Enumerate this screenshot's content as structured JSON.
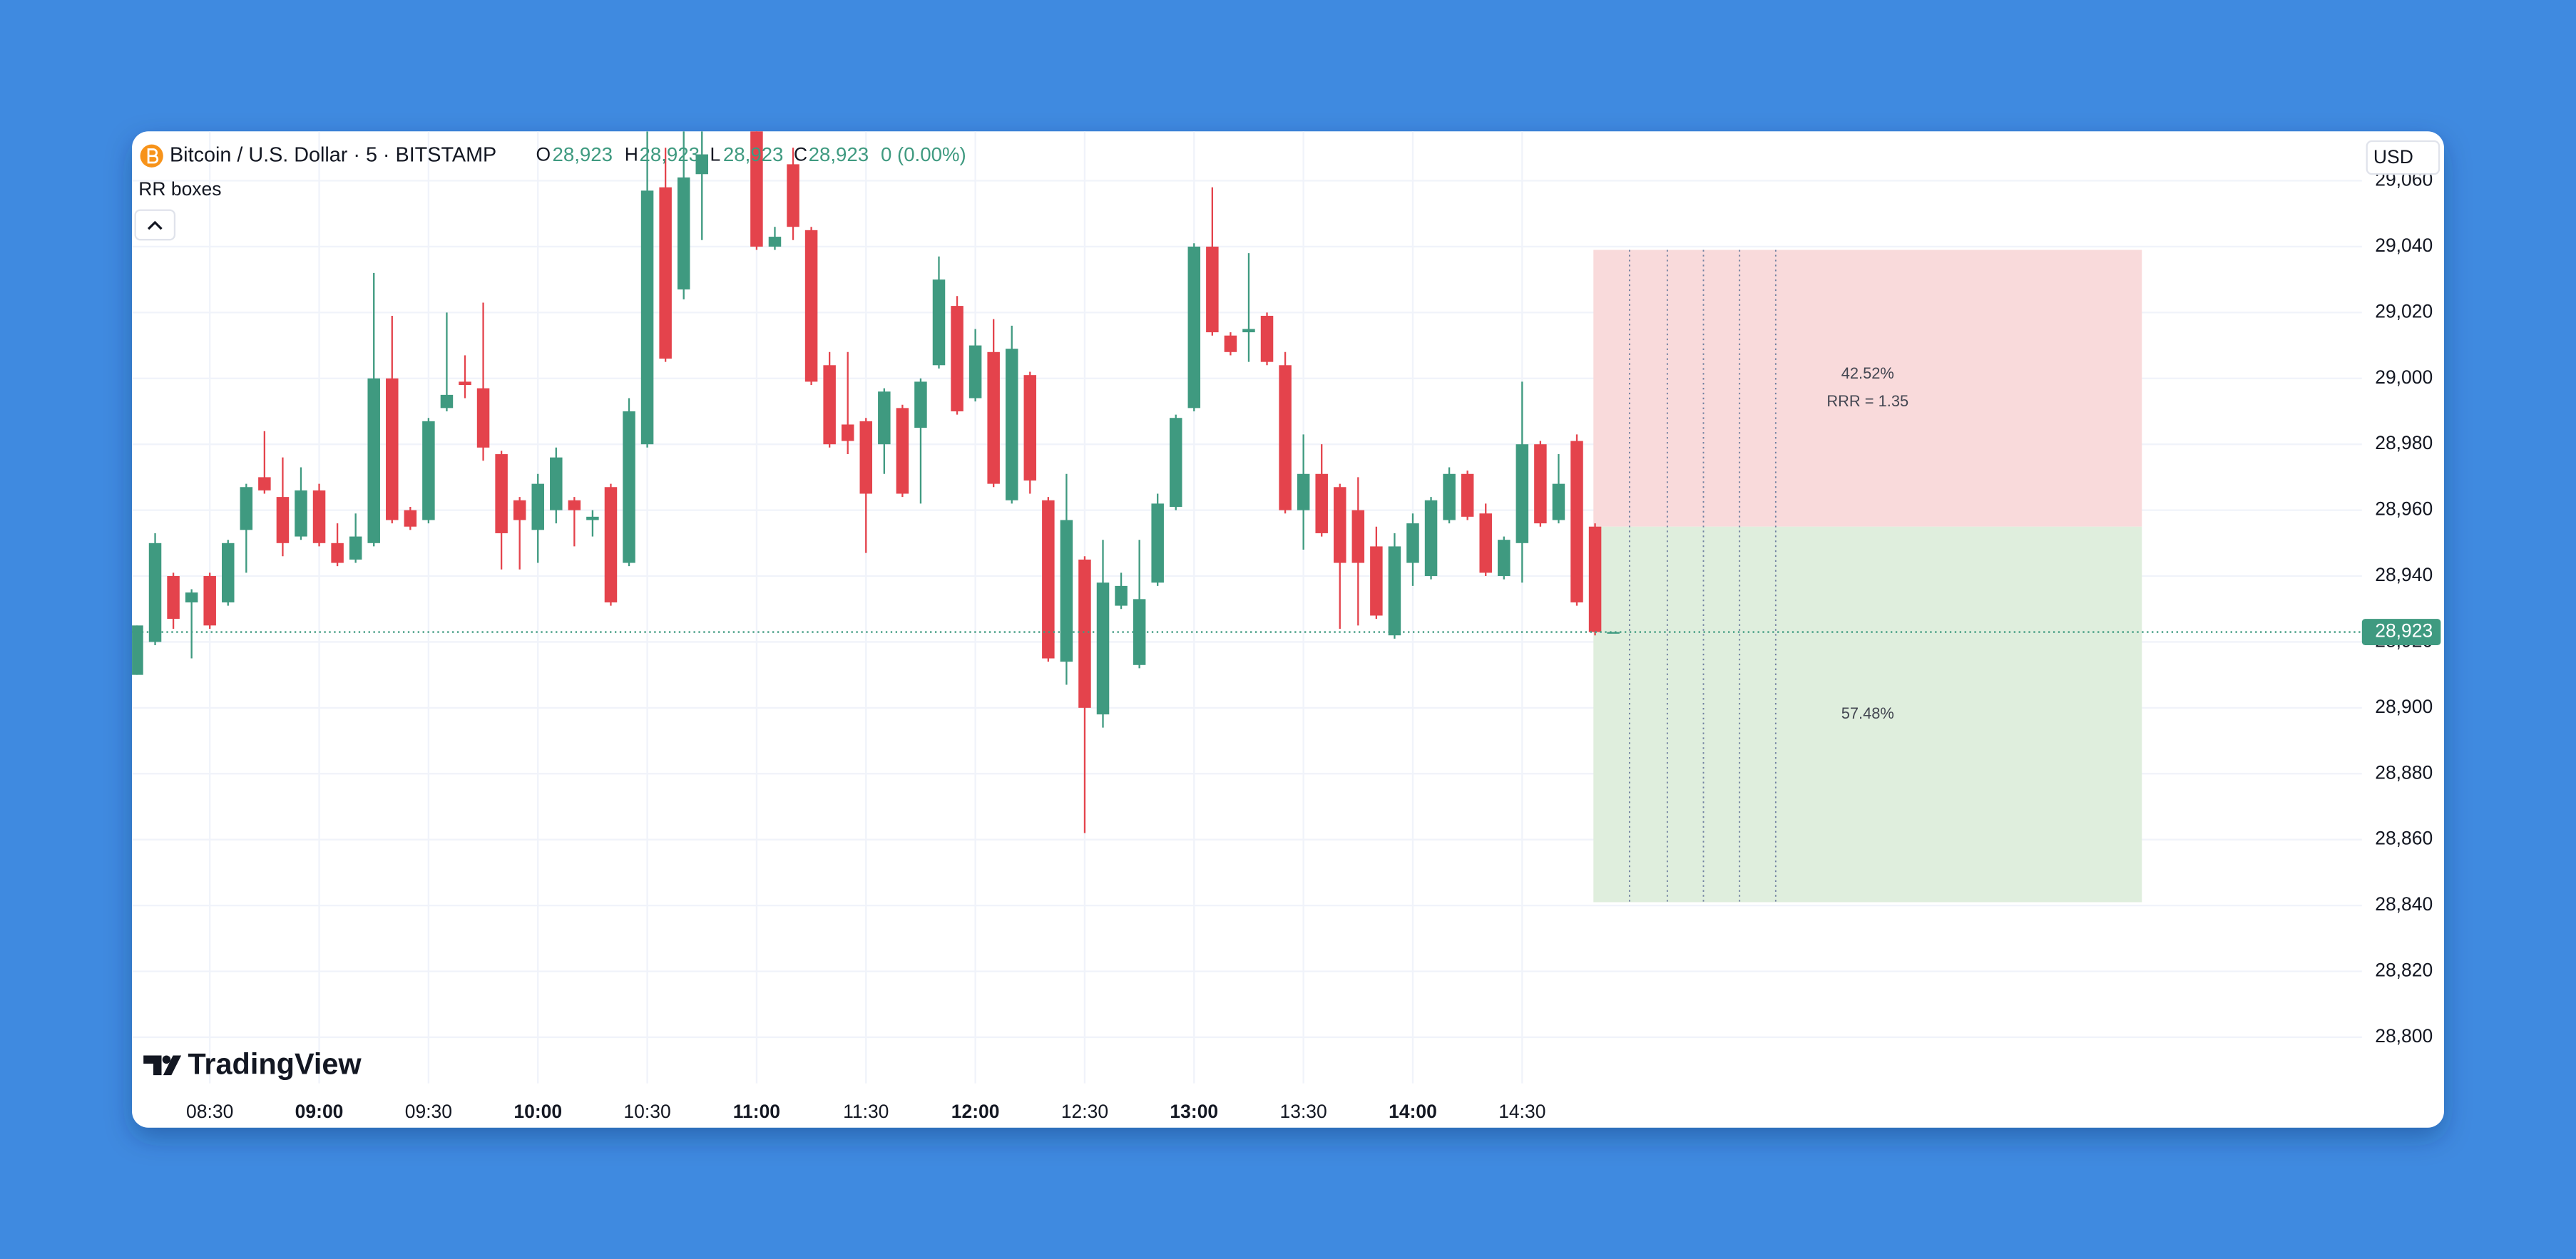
{
  "header": {
    "symbol": "Bitcoin / U.S. Dollar · 5 · BITSTAMP",
    "o_label": "O",
    "o": "28,923",
    "h_label": "H",
    "h": "28,923",
    "l_label": "L",
    "l": "28,923",
    "c_label": "C",
    "c": "28,923",
    "change": "0 (0.00%)",
    "indicator": "RR boxes",
    "currency": "USD",
    "brand": "TradingView"
  },
  "chart_data": {
    "type": "candlestick",
    "categories": [
      null,
      null,
      null,
      null,
      "08:30",
      null,
      null,
      null,
      null,
      null,
      "09:00",
      null,
      null,
      null,
      null,
      null,
      "09:30",
      null,
      null,
      null,
      null,
      null,
      "10:00",
      null,
      null,
      null,
      null,
      null,
      "10:30",
      null,
      null,
      null,
      null,
      null,
      "11:00",
      null,
      null,
      null,
      null,
      null,
      "11:30",
      null,
      null,
      null,
      null,
      null,
      "12:00",
      null,
      null,
      null,
      null,
      null,
      "12:30",
      null,
      null,
      null,
      null,
      null,
      "13:00",
      null,
      null,
      null,
      null,
      null,
      "13:30",
      null,
      null,
      null,
      null,
      null,
      "14:00",
      null,
      null,
      null,
      null,
      null,
      "14:30",
      null,
      null,
      null,
      null,
      null
    ],
    "open": [
      28910,
      28920,
      28940,
      28932,
      28940,
      28932,
      28954,
      28970,
      28964,
      28952,
      28966,
      28950,
      28945,
      28950,
      29000,
      28960,
      28957,
      28991,
      28999,
      28997,
      28977,
      28963,
      28954,
      28960,
      28963,
      28957,
      28967,
      28944,
      28980,
      29058,
      29027,
      29062,
      null,
      null,
      29075,
      29040,
      29065,
      29045,
      29004,
      28986,
      28987,
      28980,
      28991,
      28985,
      29004,
      29022,
      28994,
      29008,
      28963,
      29001,
      28963,
      28914,
      28945,
      28898,
      28931,
      28913,
      28938,
      28961,
      28991,
      29040,
      29013,
      29014,
      29019,
      29004,
      28960,
      28971,
      28967,
      28960,
      28949,
      28922,
      28944,
      28940,
      28957,
      28971,
      28959,
      28940,
      28950,
      28980,
      28957,
      28981,
      28955,
      28923
    ],
    "high": [
      28925,
      28953,
      28941,
      28936,
      28941,
      28951,
      28968,
      28984,
      28976,
      28973,
      28968,
      28956,
      28959,
      29032,
      29019,
      28961,
      28988,
      29020,
      29007,
      29023,
      28978,
      28964,
      28971,
      28979,
      28964,
      28960,
      28968,
      28994,
      29075,
      29070,
      29075,
      29075,
      null,
      null,
      29078,
      29046,
      29070,
      29046,
      29008,
      29008,
      28988,
      28997,
      28992,
      29000,
      29037,
      29025,
      29015,
      29018,
      29016,
      29002,
      28964,
      28971,
      28946,
      28951,
      28941,
      28951,
      28965,
      28989,
      29041,
      29058,
      29014,
      29038,
      29020,
      29008,
      28983,
      28980,
      28968,
      28970,
      28955,
      28953,
      28959,
      28964,
      28973,
      28972,
      28962,
      28952,
      28999,
      28981,
      28977,
      28983,
      28956,
      28923
    ],
    "low": [
      28910,
      28919,
      28924,
      28915,
      28924,
      28931,
      28941,
      28965,
      28946,
      28951,
      28949,
      28943,
      28944,
      28949,
      28956,
      28954,
      28956,
      28990,
      28994,
      28975,
      28942,
      28942,
      28944,
      28956,
      28949,
      28952,
      28931,
      28943,
      28979,
      29005,
      29024,
      29042,
      null,
      null,
      29039,
      29039,
      29042,
      28998,
      28979,
      28977,
      28947,
      28971,
      28964,
      28962,
      29003,
      28989,
      28993,
      28967,
      28962,
      28965,
      28914,
      28907,
      28862,
      28894,
      28930,
      28912,
      28937,
      28960,
      28990,
      29013,
      29007,
      29005,
      29004,
      28959,
      28948,
      28952,
      28924,
      28925,
      28927,
      28921,
      28937,
      28939,
      28956,
      28957,
      28940,
      28939,
      28938,
      28955,
      28956,
      28931,
      28922,
      28923
    ],
    "close": [
      28925,
      28950,
      28927,
      28935,
      28925,
      28950,
      28967,
      28966,
      28950,
      28966,
      28950,
      28944,
      28952,
      29000,
      28957,
      28955,
      28987,
      28995,
      28998,
      28979,
      28953,
      28957,
      28968,
      28976,
      28960,
      28958,
      28932,
      28990,
      29057,
      29006,
      29061,
      29068,
      null,
      null,
      29040,
      29043,
      29046,
      28999,
      28980,
      28981,
      28965,
      28996,
      28965,
      28999,
      29030,
      28990,
      29010,
      28968,
      29009,
      28969,
      28915,
      28957,
      28900,
      28938,
      28937,
      28933,
      28962,
      28988,
      29040,
      29014,
      29008,
      29015,
      29005,
      28960,
      28971,
      28953,
      28944,
      28944,
      28928,
      28949,
      28956,
      28963,
      28971,
      28958,
      28941,
      28951,
      28980,
      28956,
      28968,
      28932,
      28923,
      28923
    ],
    "up_color": "#3f9a80",
    "down_color": "#e4434c",
    "ylim": [
      28786,
      29075
    ],
    "yticks": [
      {
        "value": 28800,
        "label": "28,800"
      },
      {
        "value": 28820,
        "label": "28,820"
      },
      {
        "value": 28840,
        "label": "28,840"
      },
      {
        "value": 28860,
        "label": "28,860"
      },
      {
        "value": 28880,
        "label": "28,880"
      },
      {
        "value": 28900,
        "label": "28,900"
      },
      {
        "value": 28920,
        "label": "28,920"
      },
      {
        "value": 28940,
        "label": "28,940"
      },
      {
        "value": 28960,
        "label": "28,960"
      },
      {
        "value": 28980,
        "label": "28,980"
      },
      {
        "value": 29000,
        "label": "29,000"
      },
      {
        "value": 29020,
        "label": "29,020"
      },
      {
        "value": 29040,
        "label": "29,040"
      },
      {
        "value": 29060,
        "label": "29,060"
      }
    ],
    "grid": true,
    "last_price": {
      "value": 28923,
      "label": "28,923"
    },
    "rr_box": {
      "top": 29039,
      "entry": 28955,
      "bottom": 28841,
      "upper_label": "42.52%",
      "ratio_label": "RRR = 1.35",
      "lower_label": "57.48%"
    }
  }
}
